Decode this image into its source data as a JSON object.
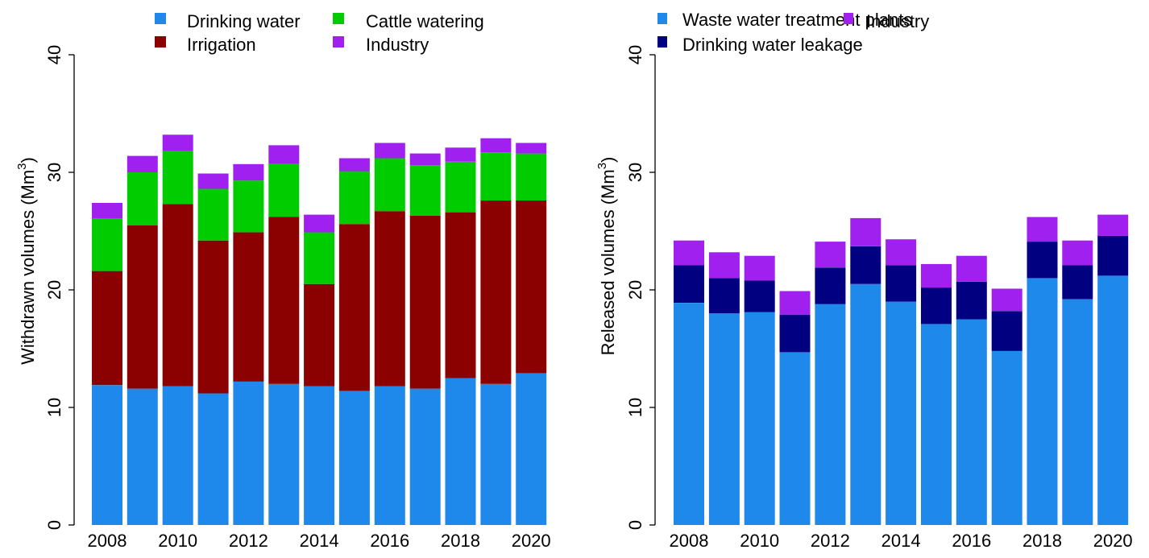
{
  "chart_data": [
    {
      "type": "bar",
      "stacked": true,
      "title": "",
      "xlabel": "",
      "ylabel": "Withdrawn volumes (Mm",
      "ylabel_superscript": "3",
      "ylabel_suffix": ")",
      "ylim": [
        0,
        40
      ],
      "yticks": [
        0,
        10,
        20,
        30,
        40
      ],
      "categories": [
        "2008",
        "2009",
        "2010",
        "2011",
        "2012",
        "2013",
        "2014",
        "2015",
        "2016",
        "2017",
        "2018",
        "2019",
        "2020"
      ],
      "xtick_labels": [
        "2008",
        "2010",
        "2012",
        "2014",
        "2016",
        "2018",
        "2020"
      ],
      "grid": false,
      "legend_position": "top",
      "legend": [
        {
          "name": "Drinking water",
          "color": "#1E88EB"
        },
        {
          "name": "Cattle watering",
          "color": "#00CC00"
        },
        {
          "name": "Irrigation",
          "color": "#8B0000"
        },
        {
          "name": "Industry",
          "color": "#A020F0"
        }
      ],
      "series": [
        {
          "name": "Drinking water",
          "color": "#1E88EB",
          "values": [
            11.9,
            11.6,
            11.8,
            11.2,
            12.2,
            12.0,
            11.8,
            11.4,
            11.8,
            11.6,
            12.5,
            12.0,
            12.9
          ]
        },
        {
          "name": "Irrigation",
          "color": "#8B0000",
          "values": [
            9.7,
            13.9,
            15.5,
            13.0,
            12.7,
            14.2,
            8.7,
            14.2,
            14.9,
            14.7,
            14.1,
            15.6,
            14.7
          ]
        },
        {
          "name": "Cattle watering",
          "color": "#00CC00",
          "values": [
            4.5,
            4.5,
            4.5,
            4.4,
            4.4,
            4.5,
            4.4,
            4.5,
            4.5,
            4.3,
            4.3,
            4.1,
            4.0
          ]
        },
        {
          "name": "Industry",
          "color": "#A020F0",
          "values": [
            1.3,
            1.4,
            1.4,
            1.3,
            1.4,
            1.6,
            1.5,
            1.1,
            1.3,
            1.0,
            1.2,
            1.2,
            0.9
          ]
        }
      ]
    },
    {
      "type": "bar",
      "stacked": true,
      "title": "",
      "xlabel": "",
      "ylabel": "Released volumes (Mm",
      "ylabel_superscript": "3",
      "ylabel_suffix": ")",
      "ylim": [
        0,
        40
      ],
      "yticks": [
        0,
        10,
        20,
        30,
        40
      ],
      "categories": [
        "2008",
        "2009",
        "2010",
        "2011",
        "2012",
        "2013",
        "2014",
        "2015",
        "2016",
        "2017",
        "2018",
        "2019",
        "2020"
      ],
      "xtick_labels": [
        "2008",
        "2010",
        "2012",
        "2014",
        "2016",
        "2018",
        "2020"
      ],
      "grid": false,
      "legend_position": "top",
      "legend": [
        {
          "name": "Waste water treatment plants",
          "color": "#1E88EB"
        },
        {
          "name": "Industry",
          "color": "#A020F0"
        },
        {
          "name": "Drinking water leakage",
          "color": "#000080"
        }
      ],
      "series": [
        {
          "name": "Waste water treatment plants",
          "color": "#1E88EB",
          "values": [
            18.9,
            18.0,
            18.1,
            14.7,
            18.8,
            20.5,
            19.0,
            17.1,
            17.5,
            14.8,
            21.0,
            19.2,
            21.2
          ]
        },
        {
          "name": "Drinking water leakage",
          "color": "#000080",
          "values": [
            3.2,
            3.0,
            2.7,
            3.2,
            3.1,
            3.2,
            3.1,
            3.1,
            3.2,
            3.4,
            3.1,
            2.9,
            3.4
          ]
        },
        {
          "name": "Industry",
          "color": "#A020F0",
          "values": [
            2.1,
            2.2,
            2.1,
            2.0,
            2.2,
            2.4,
            2.2,
            2.0,
            2.2,
            1.9,
            2.1,
            2.1,
            1.8
          ]
        }
      ]
    }
  ]
}
